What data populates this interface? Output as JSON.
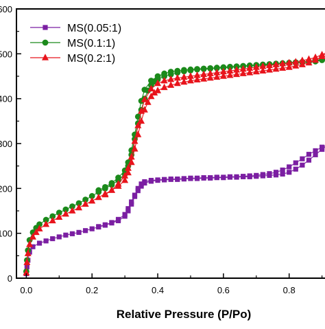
{
  "chart_data": {
    "type": "line",
    "xlabel": "Relative Pressure (P/Po)",
    "ylabel": "",
    "xlim": [
      -0.03,
      0.93
    ],
    "ylim": [
      0,
      600
    ],
    "xticks": [
      0.0,
      0.2,
      0.4,
      0.6,
      0.8
    ],
    "xtick_labels": [
      "0.0",
      "0.2",
      "0.4",
      "0.6",
      "0.8"
    ],
    "yticks": [
      0,
      100,
      200,
      300,
      400,
      500,
      600
    ],
    "ytick_labels": [
      "0",
      "100",
      "200",
      "300",
      "400",
      "500",
      "600"
    ],
    "grid": false,
    "legend_position": "top-left",
    "series": [
      {
        "name": "MS(0.05:1)",
        "color": "#7b1fa2",
        "marker": "square",
        "adsorption": {
          "x": [
            0.0,
            0.002,
            0.005,
            0.01,
            0.02,
            0.04,
            0.06,
            0.08,
            0.1,
            0.12,
            0.14,
            0.16,
            0.18,
            0.2,
            0.22,
            0.24,
            0.26,
            0.28,
            0.3,
            0.31,
            0.32,
            0.33,
            0.34,
            0.35,
            0.36,
            0.38,
            0.4,
            0.42,
            0.44,
            0.46,
            0.48,
            0.5,
            0.52,
            0.54,
            0.56,
            0.58,
            0.6,
            0.62,
            0.64,
            0.66,
            0.68,
            0.7,
            0.72,
            0.74,
            0.76,
            0.78,
            0.8,
            0.82,
            0.84,
            0.86,
            0.88,
            0.9,
            0.92
          ],
          "y": [
            10,
            25,
            40,
            58,
            70,
            78,
            83,
            88,
            92,
            96,
            99,
            102,
            106,
            110,
            114,
            118,
            123,
            128,
            138,
            150,
            165,
            182,
            195,
            205,
            212,
            216,
            218,
            219,
            220,
            220,
            221,
            222,
            222,
            223,
            223,
            224,
            224,
            225,
            225,
            226,
            226,
            227,
            228,
            229,
            230,
            232,
            236,
            243,
            252,
            263,
            275,
            287,
            298
          ]
        },
        "desorption": {
          "x": [
            0.92,
            0.9,
            0.88,
            0.86,
            0.84,
            0.82,
            0.8,
            0.78,
            0.76,
            0.74,
            0.72,
            0.7,
            0.68,
            0.66,
            0.64,
            0.62,
            0.6,
            0.58,
            0.56,
            0.54,
            0.52,
            0.5,
            0.48,
            0.46,
            0.44,
            0.42,
            0.4,
            0.38,
            0.36,
            0.35,
            0.34,
            0.33,
            0.32,
            0.31,
            0.3,
            0.28,
            0.26,
            0.24,
            0.22
          ],
          "y": [
            298,
            292,
            284,
            276,
            266,
            257,
            248,
            241,
            236,
            233,
            231,
            229,
            228,
            227,
            226,
            226,
            225,
            225,
            224,
            224,
            223,
            223,
            222,
            221,
            221,
            220,
            219,
            218,
            215,
            210,
            200,
            185,
            170,
            155,
            142,
            131,
            124,
            119,
            115
          ]
        }
      },
      {
        "name": "MS(0.1:1)",
        "color": "#1b8a1b",
        "marker": "circle",
        "adsorption": {
          "x": [
            0.0,
            0.002,
            0.005,
            0.01,
            0.02,
            0.03,
            0.04,
            0.06,
            0.08,
            0.1,
            0.12,
            0.14,
            0.16,
            0.18,
            0.2,
            0.22,
            0.24,
            0.26,
            0.28,
            0.3,
            0.31,
            0.32,
            0.33,
            0.34,
            0.35,
            0.36,
            0.37,
            0.38,
            0.39,
            0.4,
            0.42,
            0.44,
            0.46,
            0.48,
            0.5,
            0.52,
            0.54,
            0.56,
            0.58,
            0.6,
            0.62,
            0.64,
            0.66,
            0.68,
            0.7,
            0.72,
            0.74,
            0.76,
            0.78,
            0.8,
            0.82,
            0.84,
            0.86,
            0.88,
            0.9,
            0.92
          ],
          "y": [
            15,
            40,
            62,
            85,
            102,
            112,
            120,
            130,
            138,
            146,
            153,
            160,
            167,
            175,
            183,
            192,
            200,
            208,
            218,
            232,
            250,
            275,
            310,
            345,
            375,
            400,
            418,
            430,
            438,
            443,
            450,
            454,
            458,
            461,
            463,
            465,
            466,
            467,
            468,
            469,
            470,
            471,
            472,
            473,
            474,
            475,
            476,
            477,
            478,
            479,
            480,
            481,
            482,
            483,
            486,
            490
          ]
        },
        "desorption": {
          "x": [
            0.92,
            0.9,
            0.88,
            0.86,
            0.84,
            0.82,
            0.8,
            0.78,
            0.76,
            0.74,
            0.72,
            0.7,
            0.68,
            0.66,
            0.64,
            0.62,
            0.6,
            0.58,
            0.56,
            0.54,
            0.52,
            0.5,
            0.48,
            0.46,
            0.44,
            0.42,
            0.4,
            0.38,
            0.36,
            0.35,
            0.34,
            0.33,
            0.32,
            0.31,
            0.3,
            0.28,
            0.26,
            0.24,
            0.22
          ],
          "y": [
            490,
            487,
            485,
            483,
            482,
            481,
            480,
            479,
            478,
            477,
            476,
            475,
            474,
            473,
            472,
            471,
            470,
            469,
            468,
            467,
            466,
            465,
            464,
            462,
            460,
            456,
            450,
            440,
            420,
            395,
            360,
            320,
            285,
            258,
            240,
            224,
            212,
            203,
            196
          ]
        }
      },
      {
        "name": "MS(0.2:1)",
        "color": "#e8141c",
        "marker": "triangle",
        "adsorption": {
          "x": [
            0.0,
            0.002,
            0.005,
            0.01,
            0.02,
            0.03,
            0.04,
            0.06,
            0.08,
            0.1,
            0.12,
            0.14,
            0.16,
            0.18,
            0.2,
            0.22,
            0.24,
            0.26,
            0.28,
            0.3,
            0.31,
            0.32,
            0.33,
            0.34,
            0.35,
            0.36,
            0.37,
            0.38,
            0.39,
            0.4,
            0.42,
            0.44,
            0.46,
            0.48,
            0.5,
            0.52,
            0.54,
            0.56,
            0.58,
            0.6,
            0.62,
            0.64,
            0.66,
            0.68,
            0.7,
            0.72,
            0.74,
            0.76,
            0.78,
            0.8,
            0.82,
            0.84,
            0.86,
            0.88,
            0.9,
            0.92
          ],
          "y": [
            12,
            35,
            55,
            75,
            92,
            102,
            110,
            120,
            128,
            136,
            143,
            150,
            157,
            165,
            172,
            180,
            188,
            196,
            205,
            218,
            235,
            258,
            288,
            320,
            350,
            375,
            392,
            405,
            413,
            418,
            425,
            430,
            434,
            437,
            440,
            442,
            444,
            446,
            448,
            450,
            452,
            454,
            456,
            458,
            460,
            462,
            464,
            466,
            468,
            470,
            473,
            476,
            480,
            486,
            494,
            505
          ]
        },
        "desorption": {
          "x": [
            0.92,
            0.9,
            0.88,
            0.86,
            0.84,
            0.82,
            0.8,
            0.78,
            0.76,
            0.74,
            0.72,
            0.7,
            0.68,
            0.66,
            0.64,
            0.62,
            0.6,
            0.58,
            0.56,
            0.54,
            0.52,
            0.5,
            0.48,
            0.46,
            0.44,
            0.42,
            0.4,
            0.38,
            0.36,
            0.35,
            0.34,
            0.33,
            0.32,
            0.31,
            0.3,
            0.28,
            0.26,
            0.24
          ],
          "y": [
            505,
            498,
            492,
            488,
            485,
            482,
            480,
            478,
            476,
            474,
            472,
            470,
            468,
            466,
            464,
            462,
            460,
            458,
            456,
            454,
            452,
            450,
            448,
            446,
            443,
            440,
            434,
            422,
            398,
            372,
            340,
            305,
            270,
            245,
            228,
            210,
            196,
            186
          ]
        }
      }
    ]
  }
}
